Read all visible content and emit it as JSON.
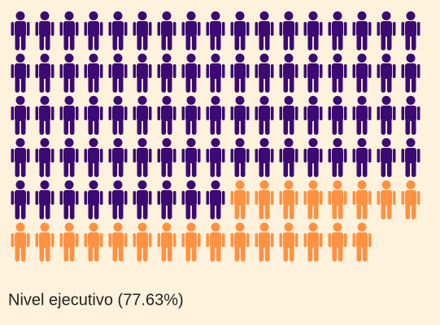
{
  "chart_data": {
    "type": "pictogram",
    "caption": "Nivel ejecutivo (77.63%)",
    "series": [
      {
        "color": "#3b0a72",
        "values": [
          77
        ]
      },
      {
        "color": "#ff9142",
        "values": [
          23
        ]
      }
    ]
  }
}
